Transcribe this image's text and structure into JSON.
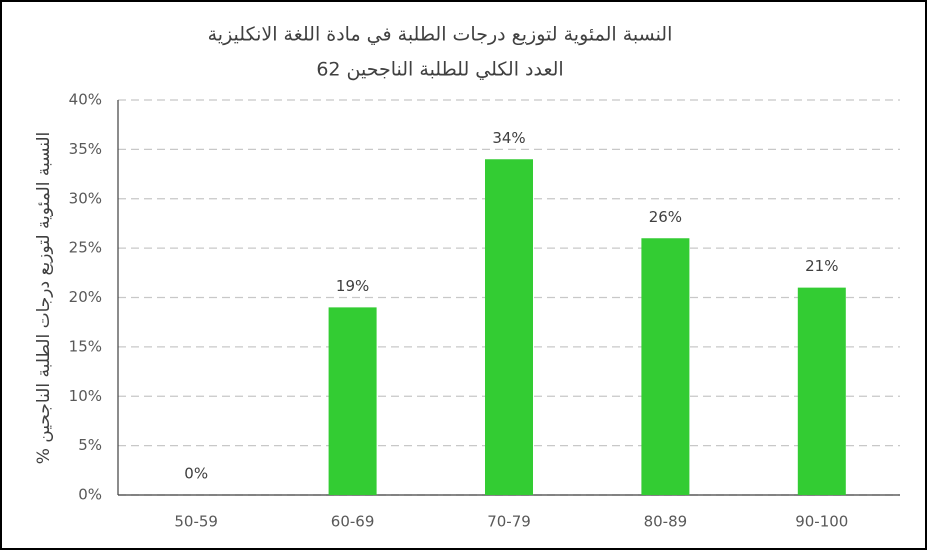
{
  "chart_data": {
    "type": "bar",
    "title": "النسبة المئوية لتوزيع درجات الطلبة في مادة اللغة الانكليزية",
    "subtitle": "العدد الكلي للطلبة الناجحين 62",
    "y_label": "النسبة المئوية لتوزيع درجات الطلبة الناجحين %",
    "categories": [
      "50-59",
      "60-69",
      "70-79",
      "80-89",
      "90-100"
    ],
    "values": [
      0,
      19,
      34,
      26,
      21
    ],
    "value_labels": [
      "0%",
      "19%",
      "34%",
      "26%",
      "21%"
    ],
    "color": "#33cc33",
    "ylim": [
      0,
      40
    ],
    "yticks": [
      {
        "value": 0,
        "label": "0%"
      },
      {
        "value": 5,
        "label": "5%"
      },
      {
        "value": 10,
        "label": "10%"
      },
      {
        "value": 15,
        "label": "15%"
      },
      {
        "value": 20,
        "label": "20%"
      },
      {
        "value": 25,
        "label": "25%"
      },
      {
        "value": 30,
        "label": "30%"
      },
      {
        "value": 35,
        "label": "35%"
      },
      {
        "value": 40,
        "label": "40%"
      }
    ],
    "grid": true
  }
}
